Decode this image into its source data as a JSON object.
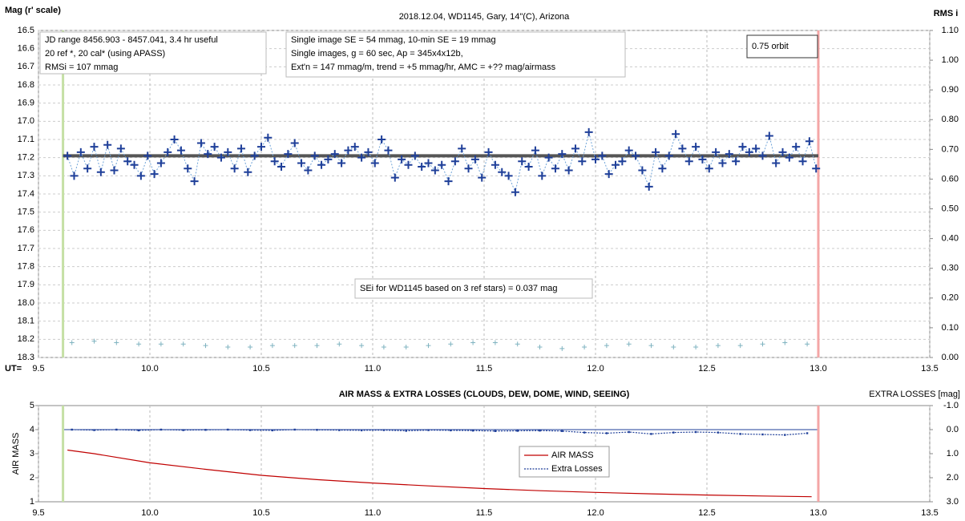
{
  "chart_data": [
    {
      "type": "scatter",
      "title": "2018.12.04, WD1145, Gary, 14\"(C), Arizona",
      "ylabel": "Mag (r' scale)",
      "y2label": "RMS i",
      "xlabel": "UT=",
      "xlim": [
        9.5,
        13.5
      ],
      "xticks": [
        9.5,
        {
          "value": 10,
          "label": "10.0"
        },
        10.5,
        {
          "value": 11,
          "label": "11.0"
        },
        11.5,
        {
          "value": 12,
          "label": "12.0"
        },
        12.5,
        {
          "value": 13,
          "label": "13.0"
        },
        13.5
      ],
      "ylim": [
        16.5,
        18.3
      ],
      "y_inverted": true,
      "yticks": [
        16.5,
        16.6,
        16.7,
        16.8,
        16.9,
        {
          "value": 17,
          "label": "17.0"
        },
        17.1,
        17.2,
        17.3,
        17.4,
        17.5,
        17.6,
        17.7,
        17.8,
        17.9,
        {
          "value": 18,
          "label": "18.0"
        },
        18.1,
        18.2,
        18.3
      ],
      "y2lim": [
        0,
        1.1
      ],
      "y2ticks": [
        {
          "value": 0,
          "label": "0.00"
        },
        {
          "value": 0.1,
          "label": "0.10"
        },
        {
          "value": 0.2,
          "label": "0.20"
        },
        {
          "value": 0.3,
          "label": "0.30"
        },
        {
          "value": 0.4,
          "label": "0.40"
        },
        {
          "value": 0.5,
          "label": "0.50"
        },
        {
          "value": 0.6,
          "label": "0.60"
        },
        {
          "value": 0.7,
          "label": "0.70"
        },
        {
          "value": 0.8,
          "label": "0.80"
        },
        {
          "value": 0.9,
          "label": "0.90"
        },
        {
          "value": 1,
          "label": "1.00"
        },
        {
          "value": 1.1,
          "label": "1.10"
        }
      ],
      "grid": true,
      "markers": [
        {
          "x": 9.61,
          "color": "#c5e0a5"
        },
        {
          "x": 13.0,
          "color": "#f4a6a6"
        }
      ],
      "reference_line": {
        "value": 17.19,
        "color": "#555555"
      },
      "series": [
        {
          "color": "#1f3f99",
          "x": [
            9.63,
            9.66,
            9.69,
            9.72,
            9.75,
            9.78,
            9.81,
            9.84,
            9.87,
            9.9,
            9.93,
            9.96,
            9.99,
            10.02,
            10.05,
            10.08,
            10.11,
            10.14,
            10.17,
            10.2,
            10.23,
            10.26,
            10.29,
            10.32,
            10.35,
            10.38,
            10.41,
            10.44,
            10.47,
            10.5,
            10.53,
            10.56,
            10.59,
            10.62,
            10.65,
            10.68,
            10.71,
            10.74,
            10.77,
            10.8,
            10.83,
            10.86,
            10.89,
            10.92,
            10.95,
            10.98,
            11.01,
            11.04,
            11.07,
            11.1,
            11.13,
            11.16,
            11.19,
            11.22,
            11.25,
            11.28,
            11.31,
            11.34,
            11.37,
            11.4,
            11.43,
            11.46,
            11.49,
            11.52,
            11.55,
            11.58,
            11.61,
            11.64,
            11.67,
            11.7,
            11.73,
            11.76,
            11.79,
            11.82,
            11.85,
            11.88,
            11.91,
            11.94,
            11.97,
            12,
            12.03,
            12.06,
            12.09,
            12.12,
            12.15,
            12.18,
            12.21,
            12.24,
            12.27,
            12.3,
            12.33,
            12.36,
            12.39,
            12.42,
            12.45,
            12.48,
            12.51,
            12.54,
            12.57,
            12.6,
            12.63,
            12.66,
            12.69,
            12.72,
            12.75,
            12.78,
            12.81,
            12.84,
            12.87,
            12.9,
            12.93,
            12.96,
            12.99
          ],
          "values": [
            17.19,
            17.3,
            17.17,
            17.26,
            17.14,
            17.28,
            17.13,
            17.27,
            17.15,
            17.22,
            17.24,
            17.3,
            17.19,
            17.29,
            17.23,
            17.17,
            17.1,
            17.16,
            17.26,
            17.33,
            17.12,
            17.18,
            17.14,
            17.2,
            17.17,
            17.26,
            17.15,
            17.28,
            17.19,
            17.14,
            17.09,
            17.22,
            17.25,
            17.18,
            17.12,
            17.23,
            17.27,
            17.19,
            17.24,
            17.21,
            17.18,
            17.23,
            17.16,
            17.14,
            17.2,
            17.17,
            17.23,
            17.1,
            17.16,
            17.31,
            17.21,
            17.24,
            17.19,
            17.25,
            17.23,
            17.27,
            17.24,
            17.33,
            17.22,
            17.15,
            17.26,
            17.21,
            17.31,
            17.17,
            17.24,
            17.28,
            17.3,
            17.39,
            17.22,
            17.25,
            17.16,
            17.3,
            17.2,
            17.26,
            17.18,
            17.27,
            17.15,
            17.22,
            17.06,
            17.21,
            17.19,
            17.29,
            17.24,
            17.22,
            17.16,
            17.19,
            17.27,
            17.36,
            17.17,
            17.26,
            17.19,
            17.07,
            17.15,
            17.22,
            17.14,
            17.21,
            17.26,
            17.17,
            17.23,
            17.18,
            17.22,
            17.14,
            17.17,
            17.15,
            17.19,
            17.08,
            17.23,
            17.17,
            17.2,
            17.14,
            17.22,
            17.11,
            17.26
          ]
        },
        {
          "color": "#7fb3c0",
          "axis": "y2",
          "x": [
            9.65,
            9.75,
            9.85,
            9.95,
            10.05,
            10.15,
            10.25,
            10.35,
            10.45,
            10.55,
            10.65,
            10.75,
            10.85,
            10.95,
            11.05,
            11.15,
            11.25,
            11.35,
            11.45,
            11.55,
            11.65,
            11.75,
            11.85,
            11.95,
            12.05,
            12.15,
            12.25,
            12.35,
            12.45,
            12.55,
            12.65,
            12.75,
            12.85,
            12.95
          ],
          "values": [
            0.05,
            0.055,
            0.05,
            0.045,
            0.045,
            0.045,
            0.04,
            0.035,
            0.035,
            0.04,
            0.04,
            0.04,
            0.045,
            0.04,
            0.035,
            0.035,
            0.04,
            0.045,
            0.05,
            0.05,
            0.045,
            0.035,
            0.03,
            0.035,
            0.04,
            0.045,
            0.04,
            0.035,
            0.035,
            0.04,
            0.04,
            0.045,
            0.05,
            0.045
          ]
        }
      ],
      "annotations": [
        {
          "lines": [
            "JD range 8456.903 - 8457.041, 3.4 hr useful",
            "20 ref *, 20 cal* (using APASS)",
            "RMSi = 107 mmag"
          ]
        },
        {
          "lines": [
            "Single image SE = 54 mmag, 10-min SE = 19 mmag",
            "Single images, g = 60 sec, Ap = 345x4x12b,",
            "Ext'n = 147 mmag/m, trend = +5 mmag/hr, AMC = +?? mag/airmass"
          ]
        },
        {
          "lines": [
            "0.75 orbit"
          ]
        },
        {
          "lines": [
            "SEi for WD1145 based on 3 ref stars) = 0.037 mag"
          ]
        }
      ]
    },
    {
      "type": "line",
      "title": "AIR MASS & EXTRA LOSSES (CLOUDS, DEW, DOME, WIND, SEEING)",
      "ylabel": "AIR MASS",
      "y2label": "EXTRA LOSSES [mag]",
      "xlim": [
        9.5,
        13.5
      ],
      "xticks": [
        9.5,
        {
          "value": 10,
          "label": "10.0"
        },
        10.5,
        {
          "value": 11,
          "label": "11.0"
        },
        11.5,
        {
          "value": 12,
          "label": "12.0"
        },
        12.5,
        {
          "value": 13,
          "label": "13.0"
        },
        13.5
      ],
      "ylim": [
        1,
        5
      ],
      "yticks": [
        1,
        2,
        3,
        4,
        5
      ],
      "y2lim": [
        -1,
        3
      ],
      "y2_inverted": true,
      "y2ticks": [
        {
          "value": -1,
          "label": "-1.0"
        },
        {
          "value": 0,
          "label": "0.0"
        },
        {
          "value": 1,
          "label": "1.0"
        },
        {
          "value": 2,
          "label": "2.0"
        },
        {
          "value": 3,
          "label": "3.0"
        }
      ],
      "grid": true,
      "markers": [
        {
          "x": 9.61,
          "color": "#c5e0a5"
        },
        {
          "x": 13.0,
          "color": "#f4a6a6"
        }
      ],
      "series": [
        {
          "name": "AIR MASS",
          "color": "#c00000",
          "x": [
            9.63,
            9.75,
            10.0,
            10.25,
            10.5,
            10.75,
            11.0,
            11.25,
            11.5,
            11.75,
            12.0,
            12.25,
            12.5,
            12.75,
            12.97
          ],
          "values": [
            3.15,
            3.0,
            2.62,
            2.35,
            2.1,
            1.92,
            1.78,
            1.66,
            1.55,
            1.46,
            1.39,
            1.33,
            1.28,
            1.24,
            1.21
          ]
        },
        {
          "name": "Extra Losses",
          "color": "#1f3f99",
          "axis": "y2",
          "x": [
            9.65,
            9.75,
            9.85,
            9.95,
            10.05,
            10.15,
            10.25,
            10.35,
            10.45,
            10.55,
            10.65,
            10.75,
            10.85,
            10.95,
            11.05,
            11.15,
            11.25,
            11.35,
            11.45,
            11.55,
            11.65,
            11.75,
            11.85,
            11.95,
            12.05,
            12.15,
            12.25,
            12.35,
            12.45,
            12.55,
            12.65,
            12.75,
            12.85,
            12.95
          ],
          "values": [
            0,
            0.02,
            0,
            0.03,
            0,
            0.02,
            0.01,
            0,
            0.02,
            0.03,
            0,
            0.01,
            0.02,
            0.03,
            0.02,
            0.05,
            0.02,
            0.03,
            0.04,
            0.06,
            0.05,
            0.04,
            0.06,
            0.12,
            0.15,
            0.1,
            0.18,
            0.12,
            0.1,
            0.12,
            0.18,
            0.2,
            0.22,
            0.15
          ]
        }
      ]
    }
  ]
}
